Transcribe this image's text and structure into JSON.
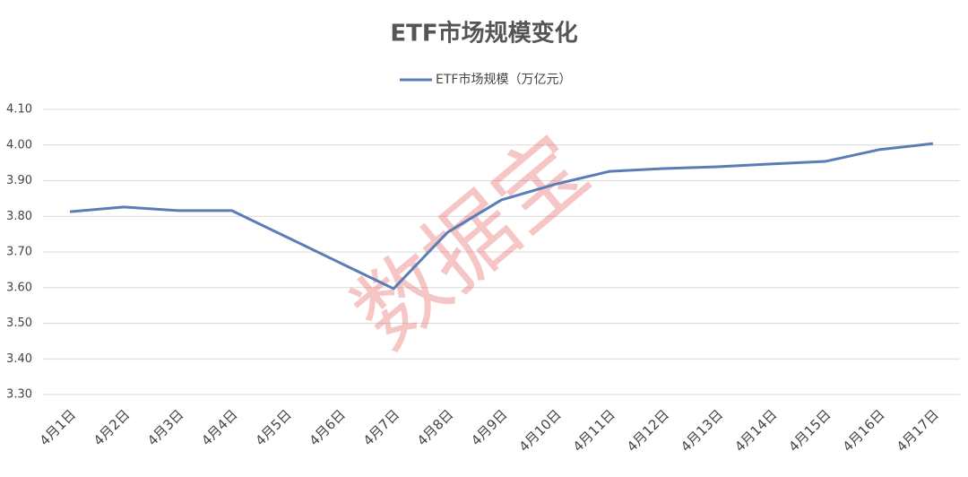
{
  "chart_data": {
    "type": "line",
    "title": "ETF市场规模变化",
    "watermark": "数据宝",
    "categories": [
      "4月1日",
      "4月2日",
      "4月3日",
      "4月4日",
      "4月5日",
      "4月6日",
      "4月7日",
      "4月8日",
      "4月9日",
      "4月10日",
      "4月11日",
      "4月12日",
      "4月13日",
      "4月14日",
      "4月15日",
      "4月16日",
      "4月17日"
    ],
    "series": [
      {
        "name": "ETF市场规模（万亿元）",
        "color": "#5a7db5",
        "values": [
          3.813,
          3.826,
          3.816,
          3.816,
          3.743,
          3.67,
          3.597,
          3.755,
          3.846,
          3.89,
          3.926,
          3.934,
          3.939,
          3.947,
          3.954,
          3.987,
          4.004
        ]
      }
    ],
    "ylim": [
      3.3,
      4.1
    ],
    "yticks": [
      {
        "value": 3.3,
        "label": "3.30"
      },
      {
        "value": 3.4,
        "label": "3.40"
      },
      {
        "value": 3.5,
        "label": "3.50"
      },
      {
        "value": 3.6,
        "label": "3.60"
      },
      {
        "value": 3.7,
        "label": "3.70"
      },
      {
        "value": 3.8,
        "label": "3.80"
      },
      {
        "value": 3.9,
        "label": "3.90"
      },
      {
        "value": 4,
        "label": "4.00"
      },
      {
        "value": 4.1,
        "label": "4.10"
      }
    ],
    "grid": true,
    "legend": "top"
  }
}
